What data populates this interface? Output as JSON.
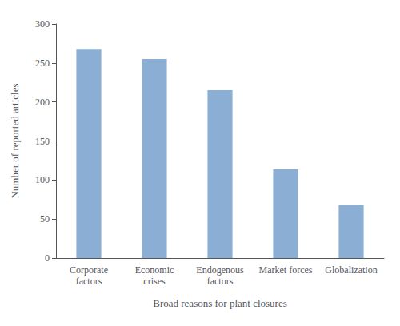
{
  "chart_data": {
    "type": "bar",
    "categories": [
      "Corporate\nfactors",
      "Economic\ncrises",
      "Endogenous\nfactors",
      "Market forces",
      "Globalization"
    ],
    "values": [
      268,
      255,
      215,
      114,
      68
    ],
    "color": "#8bafd4",
    "xlabel": "Broad reasons for plant closures",
    "ylabel": "Number of reported articles",
    "ylim": [
      0,
      300
    ],
    "yticks": [
      0,
      50,
      100,
      150,
      200,
      250,
      300
    ],
    "grid": false
  }
}
